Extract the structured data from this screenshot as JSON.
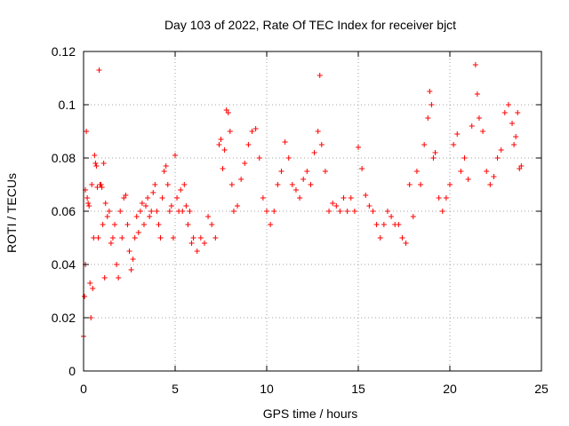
{
  "chart_data": {
    "type": "scatter",
    "title": "Day 103 of 2022, Rate Of TEC Index for receiver bjct",
    "xlabel": "GPS time / hours",
    "ylabel": "ROTI / TECUs",
    "xlim": [
      0,
      25
    ],
    "ylim": [
      0,
      0.12
    ],
    "xticks": [
      0,
      5,
      10,
      15,
      20,
      25
    ],
    "xtick_labels": [
      "0",
      "5",
      "10",
      "15",
      "20",
      "25"
    ],
    "yticks": [
      0,
      0.02,
      0.04,
      0.06,
      0.08,
      0.1,
      0.12
    ],
    "ytick_labels": [
      "0",
      "0.02",
      "0.04",
      "0.06",
      "0.08",
      "0.1",
      "0.12"
    ],
    "grid": true,
    "marker": "plus",
    "color": "#ff0000",
    "series": [
      {
        "points": [
          [
            0.0,
            0.013
          ],
          [
            0.05,
            0.028
          ],
          [
            0.1,
            0.068
          ],
          [
            0.1,
            0.04
          ],
          [
            0.15,
            0.09
          ],
          [
            0.2,
            0.065
          ],
          [
            0.25,
            0.063
          ],
          [
            0.3,
            0.062
          ],
          [
            0.35,
            0.033
          ],
          [
            0.4,
            0.02
          ],
          [
            0.45,
            0.07
          ],
          [
            0.5,
            0.031
          ],
          [
            0.55,
            0.05
          ],
          [
            0.6,
            0.081
          ],
          [
            0.65,
            0.078
          ],
          [
            0.7,
            0.077
          ],
          [
            0.75,
            0.069
          ],
          [
            0.8,
            0.05
          ],
          [
            0.85,
            0.113
          ],
          [
            0.9,
            0.07
          ],
          [
            0.95,
            0.07
          ],
          [
            1.0,
            0.069
          ],
          [
            1.05,
            0.055
          ],
          [
            1.1,
            0.078
          ],
          [
            1.15,
            0.035
          ],
          [
            1.2,
            0.063
          ],
          [
            1.3,
            0.058
          ],
          [
            1.4,
            0.06
          ],
          [
            1.5,
            0.048
          ],
          [
            1.6,
            0.05
          ],
          [
            1.7,
            0.055
          ],
          [
            1.8,
            0.04
          ],
          [
            1.9,
            0.035
          ],
          [
            2.0,
            0.06
          ],
          [
            2.1,
            0.05
          ],
          [
            2.2,
            0.065
          ],
          [
            2.3,
            0.066
          ],
          [
            2.4,
            0.055
          ],
          [
            2.5,
            0.045
          ],
          [
            2.6,
            0.038
          ],
          [
            2.7,
            0.042
          ],
          [
            2.8,
            0.05
          ],
          [
            2.9,
            0.058
          ],
          [
            3.0,
            0.052
          ],
          [
            3.1,
            0.06
          ],
          [
            3.2,
            0.063
          ],
          [
            3.3,
            0.055
          ],
          [
            3.4,
            0.062
          ],
          [
            3.5,
            0.065
          ],
          [
            3.6,
            0.058
          ],
          [
            3.7,
            0.06
          ],
          [
            3.8,
            0.067
          ],
          [
            3.9,
            0.07
          ],
          [
            4.0,
            0.06
          ],
          [
            4.1,
            0.055
          ],
          [
            4.2,
            0.05
          ],
          [
            4.3,
            0.065
          ],
          [
            4.4,
            0.075
          ],
          [
            4.5,
            0.077
          ],
          [
            4.6,
            0.07
          ],
          [
            4.7,
            0.06
          ],
          [
            4.8,
            0.062
          ],
          [
            4.9,
            0.05
          ],
          [
            5.0,
            0.081
          ],
          [
            5.1,
            0.065
          ],
          [
            5.2,
            0.06
          ],
          [
            5.3,
            0.068
          ],
          [
            5.4,
            0.06
          ],
          [
            5.5,
            0.07
          ],
          [
            5.6,
            0.062
          ],
          [
            5.7,
            0.055
          ],
          [
            5.8,
            0.06
          ],
          [
            5.9,
            0.048
          ],
          [
            6.0,
            0.05
          ],
          [
            6.2,
            0.045
          ],
          [
            6.4,
            0.05
          ],
          [
            6.6,
            0.048
          ],
          [
            6.8,
            0.058
          ],
          [
            7.0,
            0.055
          ],
          [
            7.2,
            0.05
          ],
          [
            7.4,
            0.085
          ],
          [
            7.5,
            0.087
          ],
          [
            7.6,
            0.076
          ],
          [
            7.7,
            0.083
          ],
          [
            7.8,
            0.098
          ],
          [
            7.9,
            0.097
          ],
          [
            8.0,
            0.09
          ],
          [
            8.1,
            0.07
          ],
          [
            8.2,
            0.06
          ],
          [
            8.4,
            0.062
          ],
          [
            8.6,
            0.072
          ],
          [
            8.8,
            0.078
          ],
          [
            9.0,
            0.085
          ],
          [
            9.2,
            0.09
          ],
          [
            9.4,
            0.091
          ],
          [
            9.6,
            0.08
          ],
          [
            9.8,
            0.065
          ],
          [
            10.0,
            0.06
          ],
          [
            10.2,
            0.055
          ],
          [
            10.4,
            0.06
          ],
          [
            10.6,
            0.07
          ],
          [
            10.8,
            0.075
          ],
          [
            11.0,
            0.086
          ],
          [
            11.2,
            0.08
          ],
          [
            11.4,
            0.07
          ],
          [
            11.6,
            0.068
          ],
          [
            11.8,
            0.065
          ],
          [
            12.0,
            0.072
          ],
          [
            12.2,
            0.075
          ],
          [
            12.4,
            0.07
          ],
          [
            12.6,
            0.082
          ],
          [
            12.8,
            0.09
          ],
          [
            12.9,
            0.111
          ],
          [
            13.0,
            0.085
          ],
          [
            13.2,
            0.075
          ],
          [
            13.4,
            0.06
          ],
          [
            13.6,
            0.063
          ],
          [
            13.8,
            0.062
          ],
          [
            14.0,
            0.06
          ],
          [
            14.2,
            0.065
          ],
          [
            14.4,
            0.06
          ],
          [
            14.6,
            0.065
          ],
          [
            14.8,
            0.06
          ],
          [
            15.0,
            0.084
          ],
          [
            15.2,
            0.076
          ],
          [
            15.4,
            0.066
          ],
          [
            15.6,
            0.062
          ],
          [
            15.8,
            0.06
          ],
          [
            16.0,
            0.055
          ],
          [
            16.2,
            0.05
          ],
          [
            16.4,
            0.055
          ],
          [
            16.6,
            0.06
          ],
          [
            16.8,
            0.058
          ],
          [
            17.0,
            0.055
          ],
          [
            17.2,
            0.055
          ],
          [
            17.4,
            0.05
          ],
          [
            17.6,
            0.048
          ],
          [
            17.8,
            0.07
          ],
          [
            18.0,
            0.058
          ],
          [
            18.2,
            0.075
          ],
          [
            18.4,
            0.07
          ],
          [
            18.6,
            0.085
          ],
          [
            18.8,
            0.095
          ],
          [
            18.9,
            0.105
          ],
          [
            19.0,
            0.1
          ],
          [
            19.1,
            0.08
          ],
          [
            19.2,
            0.082
          ],
          [
            19.4,
            0.065
          ],
          [
            19.6,
            0.06
          ],
          [
            19.8,
            0.065
          ],
          [
            20.0,
            0.07
          ],
          [
            20.2,
            0.085
          ],
          [
            20.4,
            0.089
          ],
          [
            20.6,
            0.075
          ],
          [
            20.8,
            0.08
          ],
          [
            21.0,
            0.072
          ],
          [
            21.2,
            0.092
          ],
          [
            21.4,
            0.115
          ],
          [
            21.5,
            0.104
          ],
          [
            21.6,
            0.095
          ],
          [
            21.8,
            0.09
          ],
          [
            22.0,
            0.075
          ],
          [
            22.2,
            0.07
          ],
          [
            22.4,
            0.073
          ],
          [
            22.6,
            0.08
          ],
          [
            22.8,
            0.083
          ],
          [
            23.0,
            0.097
          ],
          [
            23.2,
            0.1
          ],
          [
            23.4,
            0.093
          ],
          [
            23.5,
            0.085
          ],
          [
            23.6,
            0.088
          ],
          [
            23.7,
            0.097
          ],
          [
            23.8,
            0.076
          ],
          [
            23.9,
            0.077
          ]
        ]
      }
    ]
  }
}
